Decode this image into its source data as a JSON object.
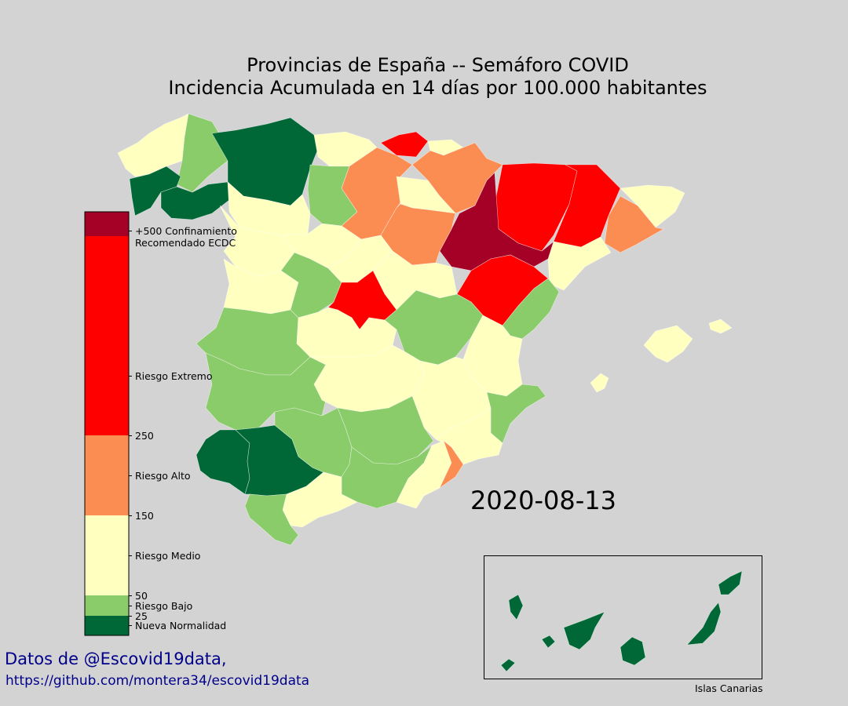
{
  "title": {
    "line1": "Provincias de España -- Semáforo COVID",
    "line2": "Incidencia Acumulada en 14 días por 100.000 habitantes"
  },
  "date": "2020-08-13",
  "colors": {
    "background": "#d3d3d3",
    "nueva_normalidad": "#006837",
    "riesgo_bajo": "#8acb6a",
    "riesgo_medio": "#ffffc0",
    "riesgo_alto": "#fc8d52",
    "riesgo_extremo": "#ff0000",
    "confinamiento": "#a50026"
  },
  "legend": {
    "categories": [
      {
        "name": "Nueva Normalidad",
        "from": 0,
        "to": 25,
        "color": "#006837"
      },
      {
        "name": "Riesgo Bajo",
        "from": 25,
        "to": 50,
        "color": "#8acb6a"
      },
      {
        "name": "Riesgo Medio",
        "from": 50,
        "to": 150,
        "color": "#ffffc0"
      },
      {
        "name": "Riesgo Alto",
        "from": 150,
        "to": 250,
        "color": "#fc8d52"
      },
      {
        "name": "Riesgo Extremo",
        "from": 250,
        "to": 500,
        "color": "#ff0000"
      },
      {
        "name": "+500 Confinamiento",
        "from": 500,
        "to": null,
        "color": "#a50026"
      }
    ],
    "labels": {
      "confinamiento_1": "+500 Confinamiento",
      "confinamiento_2": "Recomendado ECDC",
      "extremo": "Riesgo Extremo",
      "t250": "250",
      "alto": "Riesgo Alto",
      "t150": "150",
      "medio": "Riesgo Medio",
      "t50": "50",
      "bajo": "Riesgo Bajo",
      "t25": "25",
      "normalidad": "Nueva Normalidad"
    }
  },
  "source": {
    "line1": "Datos de @Escovid19data,",
    "line2": "https://github.com/montera34/escovid19data"
  },
  "inset": {
    "caption": "Islas Canarias",
    "category": "Nueva Normalidad"
  },
  "regions": [
    {
      "name": "Galicia norte",
      "category": "Riesgo Medio"
    },
    {
      "name": "Lugo",
      "category": "Riesgo Bajo"
    },
    {
      "name": "Pontevedra",
      "category": "Nueva Normalidad"
    },
    {
      "name": "Ourense",
      "category": "Nueva Normalidad"
    },
    {
      "name": "Asturias",
      "category": "Nueva Normalidad"
    },
    {
      "name": "Cantabria",
      "category": "Riesgo Medio"
    },
    {
      "name": "Bizkaia",
      "category": "Riesgo Extremo"
    },
    {
      "name": "Gipuzkoa",
      "category": "Riesgo Medio"
    },
    {
      "name": "Burgos",
      "category": "Riesgo Alto"
    },
    {
      "name": "Navarra",
      "category": "Riesgo Alto"
    },
    {
      "name": "Huesca",
      "category": "Riesgo Extremo"
    },
    {
      "name": "Lleida",
      "category": "Riesgo Extremo"
    },
    {
      "name": "Girona",
      "category": "Riesgo Medio"
    },
    {
      "name": "Barcelona",
      "category": "Riesgo Alto"
    },
    {
      "name": "Tarragona",
      "category": "Riesgo Medio"
    },
    {
      "name": "Zaragoza",
      "category": "+500 Confinamiento"
    },
    {
      "name": "Soria",
      "category": "Riesgo Alto"
    },
    {
      "name": "La Rioja",
      "category": "Riesgo Medio"
    },
    {
      "name": "Teruel",
      "category": "Riesgo Extremo"
    },
    {
      "name": "Madrid",
      "category": "Riesgo Extremo"
    },
    {
      "name": "León",
      "category": "Riesgo Medio"
    },
    {
      "name": "Palencia",
      "category": "Riesgo Bajo"
    },
    {
      "name": "Zamora",
      "category": "Riesgo Medio"
    },
    {
      "name": "Valladolid",
      "category": "Riesgo Medio"
    },
    {
      "name": "Salamanca",
      "category": "Riesgo Medio"
    },
    {
      "name": "Ávila",
      "category": "Riesgo Bajo"
    },
    {
      "name": "Segovia",
      "category": "Riesgo Medio"
    },
    {
      "name": "Guadalajara",
      "category": "Riesgo Medio"
    },
    {
      "name": "Cuenca",
      "category": "Riesgo Bajo"
    },
    {
      "name": "Castellón",
      "category": "Riesgo Bajo"
    },
    {
      "name": "Valencia",
      "category": "Riesgo Medio"
    },
    {
      "name": "Alicante",
      "category": "Riesgo Bajo"
    },
    {
      "name": "Cáceres",
      "category": "Riesgo Bajo"
    },
    {
      "name": "Badajoz",
      "category": "Riesgo Bajo"
    },
    {
      "name": "Toledo",
      "category": "Riesgo Medio"
    },
    {
      "name": "Ciudad Real",
      "category": "Riesgo Medio"
    },
    {
      "name": "Albacete",
      "category": "Riesgo Medio"
    },
    {
      "name": "Murcia",
      "category": "Riesgo Medio"
    },
    {
      "name": "Murcia sur",
      "category": "Riesgo Alto"
    },
    {
      "name": "Huelva",
      "category": "Nueva Normalidad"
    },
    {
      "name": "Sevilla",
      "category": "Nueva Normalidad"
    },
    {
      "name": "Córdoba",
      "category": "Riesgo Bajo"
    },
    {
      "name": "Jaén",
      "category": "Riesgo Bajo"
    },
    {
      "name": "Granada",
      "category": "Riesgo Bajo"
    },
    {
      "name": "Almería",
      "category": "Riesgo Medio"
    },
    {
      "name": "Cádiz",
      "category": "Riesgo Bajo"
    },
    {
      "name": "Málaga",
      "category": "Riesgo Medio"
    },
    {
      "name": "Mallorca",
      "category": "Riesgo Medio"
    },
    {
      "name": "Menorca",
      "category": "Riesgo Medio"
    },
    {
      "name": "Ibiza",
      "category": "Riesgo Medio"
    }
  ]
}
